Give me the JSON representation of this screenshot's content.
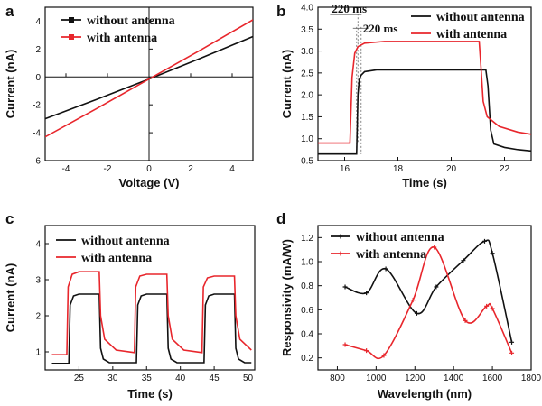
{
  "colors": {
    "without": "#111111",
    "with": "#e8262c",
    "axis": "#111111"
  },
  "chart_data": [
    {
      "panel": "a",
      "type": "line",
      "xlabel": "Voltage (V)",
      "ylabel": "Current (nA)",
      "xlim": [
        -5,
        5
      ],
      "ylim": [
        -6,
        5
      ],
      "xticks": [
        -4,
        -2,
        0,
        2,
        4
      ],
      "yticks": [
        -6,
        -4,
        -2,
        0,
        2,
        4
      ],
      "legend_position": "top-left",
      "series": [
        {
          "name": "without antenna",
          "key": "without",
          "marker": "square",
          "x": [
            -5,
            -2.5,
            0,
            2.5,
            5
          ],
          "y": [
            -3.0,
            -1.6,
            -0.15,
            1.35,
            2.9
          ]
        },
        {
          "name": "with antenna",
          "key": "with",
          "marker": "square",
          "x": [
            -5,
            -2.5,
            0,
            2.5,
            5
          ],
          "y": [
            -4.3,
            -2.25,
            -0.15,
            1.95,
            4.1
          ]
        }
      ]
    },
    {
      "panel": "b",
      "type": "line",
      "xlabel": "Time (s)",
      "ylabel": "Current (nA)",
      "xlim": [
        15,
        23
      ],
      "ylim": [
        0.5,
        4.0
      ],
      "xticks": [
        16,
        18,
        20,
        22
      ],
      "yticks": [
        0.5,
        1.0,
        1.5,
        2.0,
        2.5,
        3.0,
        3.5,
        4.0
      ],
      "legend_position": "top-right",
      "annotations": [
        "220 ms",
        "220 ms"
      ],
      "series": [
        {
          "name": "without antenna",
          "key": "without",
          "x": [
            15,
            16.45,
            16.5,
            16.55,
            16.62,
            16.75,
            17.2,
            21.3,
            21.38,
            21.48,
            21.6,
            22,
            22.5,
            23
          ],
          "y": [
            0.65,
            0.65,
            2.0,
            2.35,
            2.45,
            2.53,
            2.57,
            2.57,
            2.2,
            1.2,
            0.88,
            0.8,
            0.75,
            0.72
          ]
        },
        {
          "name": "with antenna",
          "key": "with",
          "x": [
            15,
            16.2,
            16.28,
            16.38,
            16.5,
            16.75,
            17.5,
            21.05,
            21.12,
            21.2,
            21.35,
            21.8,
            22.5,
            23
          ],
          "y": [
            0.9,
            0.9,
            2.4,
            2.95,
            3.1,
            3.18,
            3.22,
            3.22,
            2.6,
            1.85,
            1.5,
            1.28,
            1.15,
            1.1
          ]
        }
      ]
    },
    {
      "panel": "c",
      "type": "line",
      "xlabel": "Time (s)",
      "ylabel": "Current (nA)",
      "xlim": [
        20,
        51
      ],
      "ylim": [
        0.5,
        4.5
      ],
      "xticks": [
        25,
        30,
        35,
        40,
        45,
        50
      ],
      "yticks": [
        1,
        2,
        3,
        4
      ],
      "legend_position": "top-left",
      "series": [
        {
          "name": "without antenna",
          "key": "without",
          "x": [
            21,
            23.5,
            23.7,
            24.2,
            25,
            28,
            28.2,
            28.6,
            29.5,
            33.5,
            33.7,
            34.2,
            35,
            38,
            38.2,
            38.6,
            39.5,
            43.5,
            43.7,
            44.2,
            45,
            48,
            48.2,
            48.6,
            49.5,
            50.5
          ],
          "y": [
            0.68,
            0.68,
            2.3,
            2.55,
            2.6,
            2.6,
            1.1,
            0.8,
            0.7,
            0.7,
            2.3,
            2.55,
            2.6,
            2.6,
            1.1,
            0.8,
            0.7,
            0.7,
            2.3,
            2.55,
            2.6,
            2.6,
            1.1,
            0.8,
            0.7,
            0.7
          ]
        },
        {
          "name": "with antenna",
          "key": "with",
          "x": [
            21,
            23.2,
            23.4,
            24.0,
            25,
            28,
            28.2,
            28.8,
            30.5,
            33.2,
            33.4,
            34.0,
            35,
            38,
            38.2,
            38.8,
            40.5,
            43.2,
            43.4,
            44.0,
            45,
            48,
            48.2,
            48.8,
            50.5
          ],
          "y": [
            0.92,
            0.92,
            2.8,
            3.15,
            3.22,
            3.22,
            2.0,
            1.35,
            1.05,
            0.98,
            2.8,
            3.1,
            3.15,
            3.15,
            2.0,
            1.35,
            1.05,
            0.98,
            2.8,
            3.05,
            3.1,
            3.1,
            2.0,
            1.35,
            1.05
          ]
        }
      ]
    },
    {
      "panel": "d",
      "type": "line",
      "xlabel": "Wavelength (nm)",
      "ylabel": "Responsivity (mA/W)",
      "xlim": [
        700,
        1800
      ],
      "ylim": [
        0.1,
        1.3
      ],
      "xticks": [
        800,
        1000,
        1200,
        1400,
        1600,
        1800
      ],
      "yticks": [
        0.2,
        0.4,
        0.6,
        0.8,
        1.0,
        1.2
      ],
      "legend_position": "top-left",
      "series": [
        {
          "name": "without antenna",
          "key": "without",
          "x": [
            840,
            950,
            1050,
            1210,
            1310,
            1450,
            1560,
            1600,
            1700
          ],
          "y": [
            0.79,
            0.74,
            0.94,
            0.57,
            0.79,
            1.01,
            1.17,
            1.07,
            0.33
          ]
        },
        {
          "name": "with antenna",
          "key": "with",
          "x": [
            840,
            950,
            1040,
            1190,
            1300,
            1460,
            1570,
            1600,
            1700
          ],
          "y": [
            0.31,
            0.26,
            0.22,
            0.68,
            1.12,
            0.51,
            0.63,
            0.61,
            0.24
          ]
        }
      ]
    }
  ]
}
